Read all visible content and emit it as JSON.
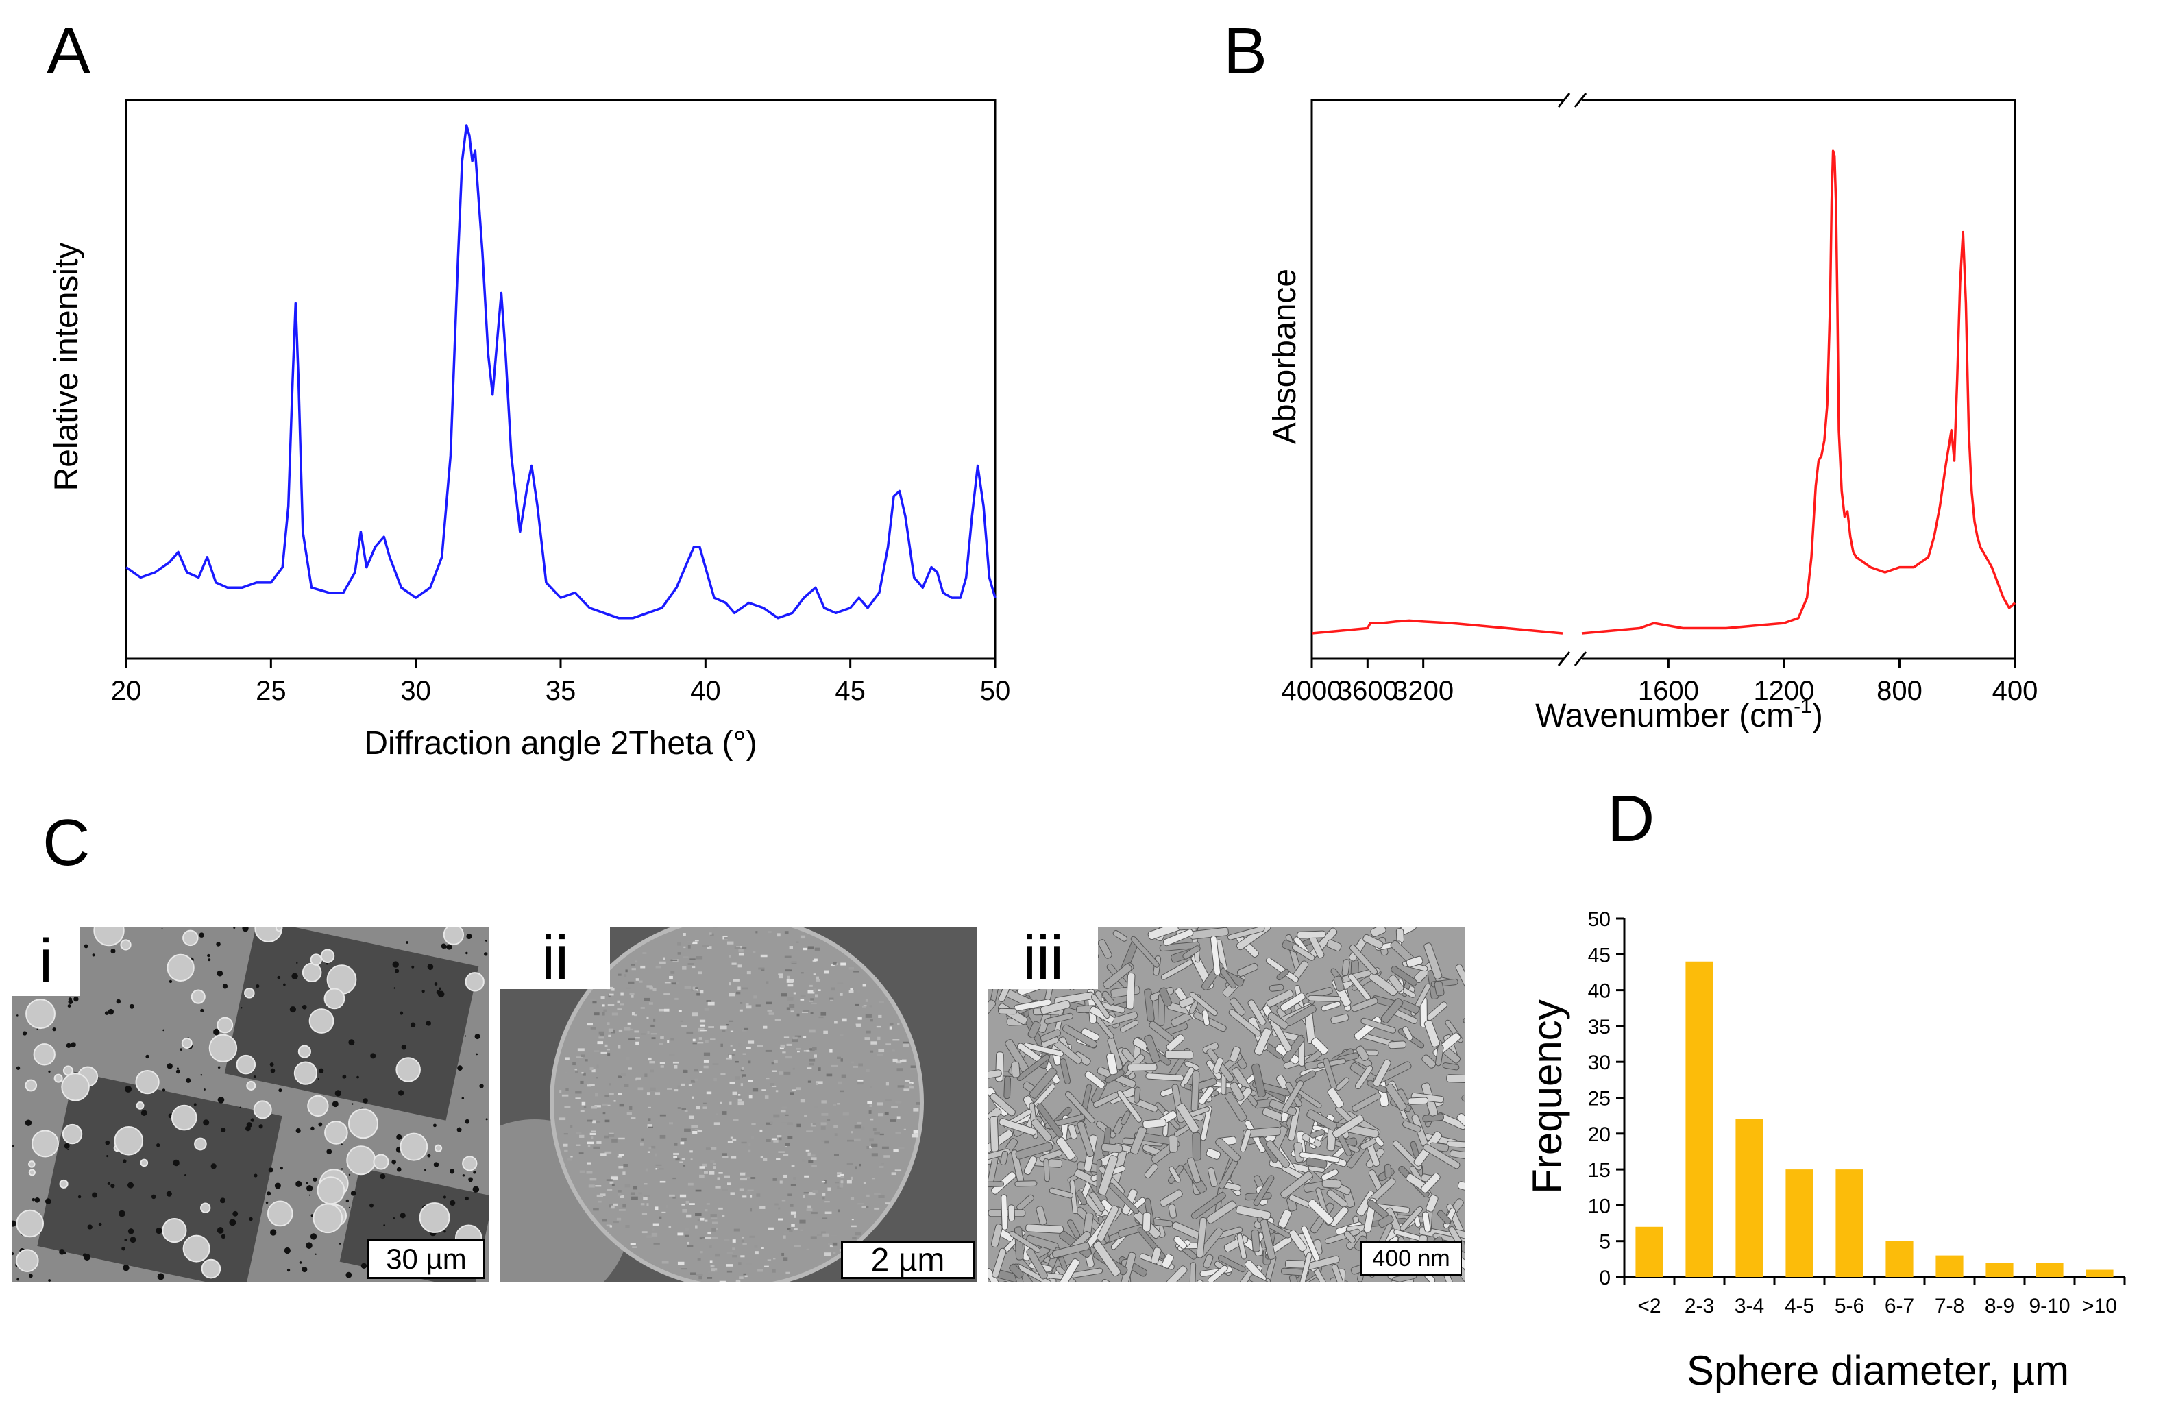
{
  "panels": {
    "a": "A",
    "b": "B",
    "c": "C",
    "d": "D"
  },
  "chart_data": [
    {
      "id": "A",
      "type": "line",
      "xlabel": "Diffraction angle 2Theta (°)",
      "ylabel": "Relative intensity",
      "xlim": [
        20,
        50
      ],
      "ylim": [
        0,
        110
      ],
      "xticks": [
        20,
        25,
        30,
        35,
        40,
        45,
        50
      ],
      "color": "#1a1aff",
      "x": [
        20,
        20.5,
        21,
        21.5,
        21.8,
        22.1,
        22.5,
        22.8,
        23.1,
        23.5,
        24,
        24.5,
        25,
        25.4,
        25.6,
        25.75,
        25.85,
        25.95,
        26.1,
        26.4,
        27,
        27.5,
        27.9,
        28.1,
        28.3,
        28.6,
        28.9,
        29.1,
        29.5,
        30,
        30.5,
        30.9,
        31.2,
        31.45,
        31.6,
        31.75,
        31.85,
        31.95,
        32.05,
        32.15,
        32.3,
        32.5,
        32.65,
        32.8,
        32.95,
        33.1,
        33.3,
        33.6,
        33.85,
        34,
        34.2,
        34.5,
        35,
        35.5,
        36,
        36.5,
        37,
        37.5,
        38,
        38.5,
        39,
        39.3,
        39.6,
        39.8,
        40,
        40.3,
        40.7,
        41,
        41.5,
        42,
        42.5,
        43,
        43.4,
        43.8,
        44.1,
        44.5,
        45,
        45.3,
        45.6,
        46,
        46.3,
        46.5,
        46.7,
        46.9,
        47.2,
        47.5,
        47.8,
        48,
        48.2,
        48.5,
        48.8,
        49,
        49.2,
        49.4,
        49.6,
        49.8,
        50
      ],
      "y": [
        18,
        16,
        17,
        19,
        21,
        17,
        16,
        20,
        15,
        14,
        14,
        15,
        15,
        18,
        30,
        55,
        70,
        55,
        25,
        14,
        13,
        13,
        17,
        25,
        18,
        22,
        24,
        20,
        14,
        12,
        14,
        20,
        40,
        78,
        98,
        105,
        103,
        98,
        100,
        92,
        80,
        60,
        52,
        62,
        72,
        60,
        40,
        25,
        34,
        38,
        30,
        15,
        12,
        13,
        10,
        9,
        8,
        8,
        9,
        10,
        14,
        18,
        22,
        22,
        18,
        12,
        11,
        9,
        11,
        10,
        8,
        9,
        12,
        14,
        10,
        9,
        10,
        12,
        10,
        13,
        22,
        32,
        33,
        28,
        16,
        14,
        18,
        17,
        13,
        12,
        12,
        16,
        28,
        38,
        30,
        16,
        12
      ]
    },
    {
      "id": "B",
      "type": "line",
      "xlabel": "Wavenumber (cm",
      "xlabel_sup": "-1",
      "xlabel_end": ")",
      "ylabel": "Absorbance",
      "xticks": [
        4000,
        3600,
        3200,
        1600,
        1200,
        800,
        400
      ],
      "axis_break": [
        2200,
        1900
      ],
      "color": "#ff1a1a",
      "ylim": [
        0,
        110
      ],
      "segment_high": {
        "x": [
          4000,
          3800,
          3600,
          3580,
          3500,
          3400,
          3300,
          3200,
          3000,
          2800,
          2600,
          2400,
          2200
        ],
        "y": [
          5,
          5.5,
          6,
          7,
          7,
          7.3,
          7.5,
          7.3,
          7,
          6.5,
          6,
          5.5,
          5
        ]
      },
      "segment_low": {
        "x": [
          1900,
          1800,
          1700,
          1650,
          1600,
          1550,
          1500,
          1400,
          1300,
          1200,
          1150,
          1120,
          1105,
          1090,
          1080,
          1070,
          1060,
          1050,
          1040,
          1035,
          1030,
          1025,
          1020,
          1015,
          1010,
          1000,
          990,
          980,
          970,
          960,
          950,
          900,
          850,
          800,
          750,
          700,
          680,
          660,
          640,
          620,
          610,
          600,
          590,
          580,
          570,
          560,
          550,
          540,
          530,
          520,
          500,
          480,
          460,
          440,
          420,
          400
        ],
        "y": [
          5,
          5.5,
          6,
          7,
          6.5,
          6,
          6,
          6,
          6.5,
          7,
          8,
          12,
          20,
          34,
          39,
          40,
          43,
          50,
          70,
          90,
          100,
          99,
          90,
          70,
          45,
          33,
          28,
          29,
          24,
          21,
          20,
          18,
          17,
          18,
          18,
          20,
          24,
          30,
          38,
          45,
          39,
          55,
          74,
          84,
          70,
          45,
          33,
          27,
          24,
          22,
          20,
          18,
          15,
          12,
          10,
          11
        ]
      }
    },
    {
      "id": "D",
      "type": "bar",
      "title": "",
      "xlabel": "Sphere diameter, µm",
      "ylabel": "Frequency",
      "categories": [
        "<2",
        "2-3",
        "3-4",
        "4-5",
        "5-6",
        "6-7",
        "7-8",
        "8-9",
        "9-10",
        ">10"
      ],
      "values": [
        7,
        44,
        22,
        15,
        15,
        5,
        3,
        2,
        2,
        1
      ],
      "ylim": [
        0,
        50
      ],
      "yticks": [
        0,
        5,
        10,
        15,
        20,
        25,
        30,
        35,
        40,
        45,
        50
      ],
      "color": "#fcbc0a"
    }
  ],
  "micrographs": [
    {
      "label": "i",
      "scale": "30 µm"
    },
    {
      "label": "ii",
      "scale": "2 µm"
    },
    {
      "label": "iii",
      "scale": "400 nm"
    }
  ]
}
